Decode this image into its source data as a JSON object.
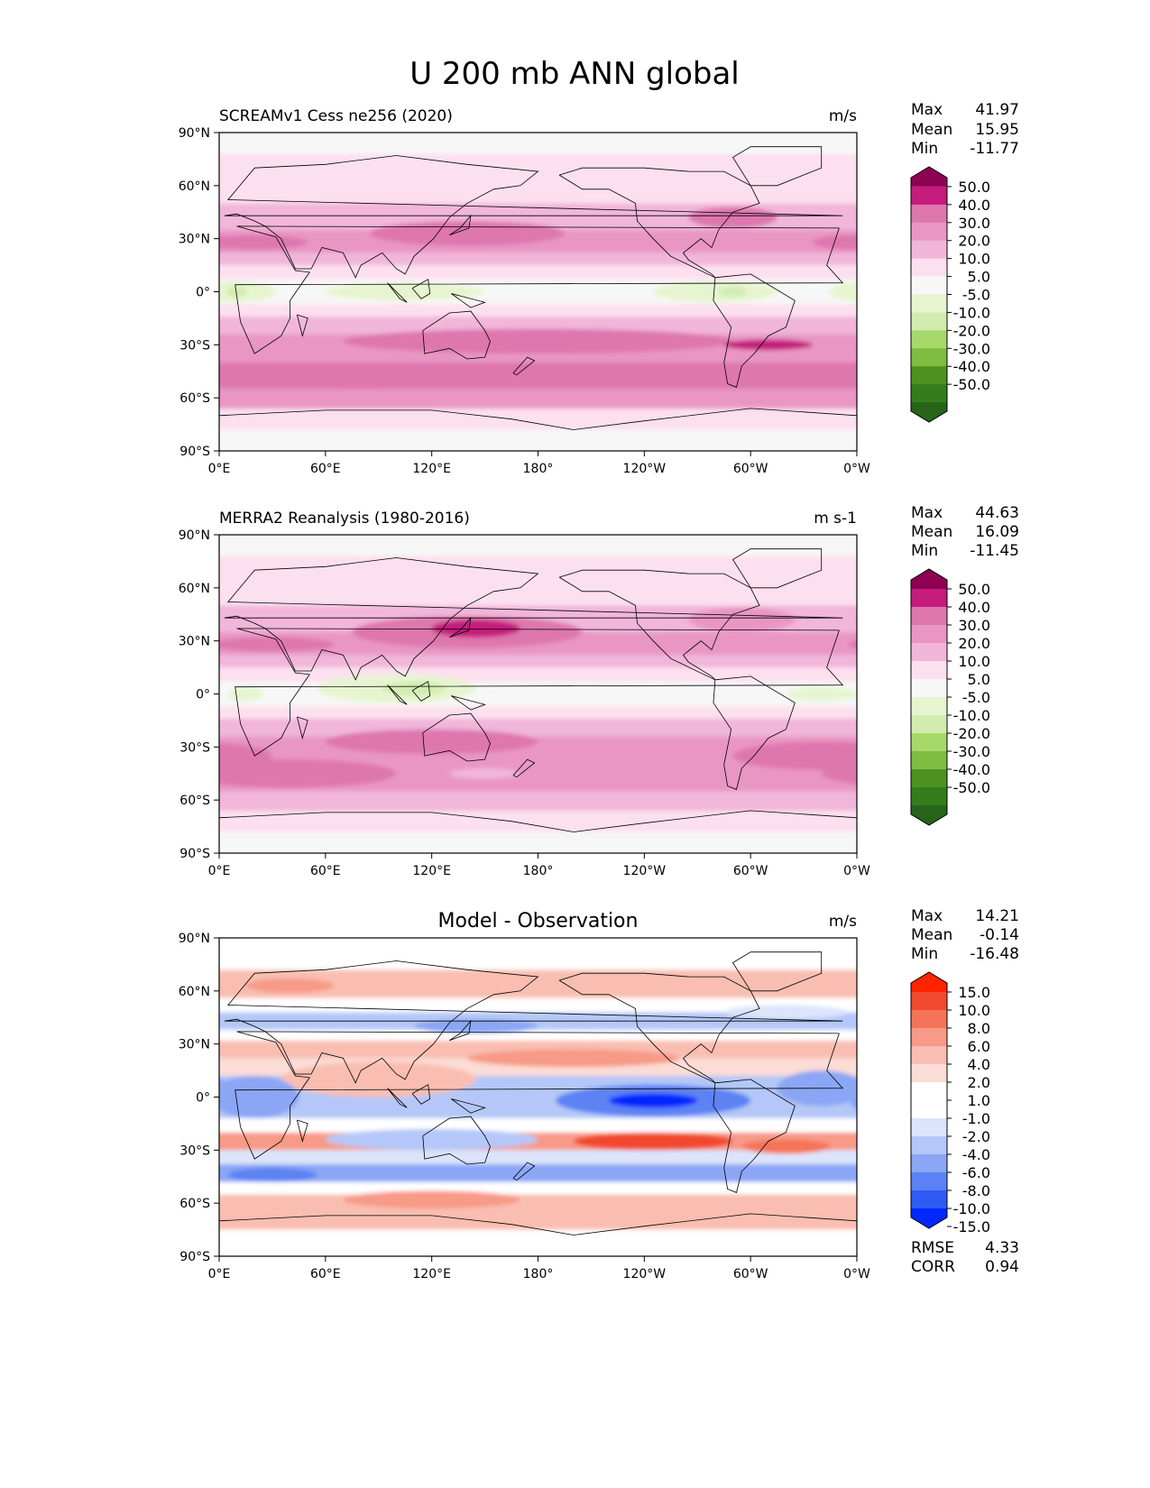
{
  "figure_title": "U 200 mb ANN global",
  "colors": {
    "land_outline": "#000000",
    "background_field": "#f7f7f7",
    "piyg": [
      "#276419",
      "#347d1d",
      "#4d9221",
      "#7fbc41",
      "#a6d96a",
      "#d2ecb0",
      "#e6f5d0",
      "#f7f7f7",
      "#fde0ef",
      "#f1b6da",
      "#e996c4",
      "#de77ae",
      "#c51b7d",
      "#8e0152"
    ],
    "bwr": [
      "#0028ff",
      "#2f5bf5",
      "#5b82f4",
      "#8aa6f5",
      "#b4c7f8",
      "#dbe4fb",
      "#ffffff",
      "#ffffff",
      "#fbdcd6",
      "#f9beb1",
      "#f79a87",
      "#f47459",
      "#f24a2f",
      "#ff2400"
    ]
  },
  "chart_data": [
    {
      "type": "heatmap",
      "title": "SCREAMv1 Cess ne256 (2020)",
      "units": "m/s",
      "stats": {
        "max": "41.97",
        "mean": "15.95",
        "min": "-11.77"
      },
      "stat_labels": {
        "max": "Max",
        "mean": "Mean",
        "min": "Min"
      },
      "x_ticks": [
        "0°E",
        "60°E",
        "120°E",
        "180°",
        "120°W",
        "60°W",
        "0°W"
      ],
      "y_ticks": [
        "90°N",
        "60°N",
        "30°N",
        "0°",
        "30°S",
        "60°S",
        "90°S"
      ],
      "xlim": [
        0,
        360
      ],
      "ylim": [
        -90,
        90
      ],
      "colorbar": {
        "palette": "piyg",
        "labels": [
          "50.0",
          "40.0",
          "30.0",
          "20.0",
          "10.0",
          "5.0",
          "-5.0",
          "-10.0",
          "-20.0",
          "-30.0",
          "-40.0",
          "-50.0"
        ]
      },
      "bands": [
        {
          "lat": [
            -90,
            -78
          ],
          "level": 7
        },
        {
          "lat": [
            -78,
            -66
          ],
          "level": 8
        },
        {
          "lat": [
            -66,
            -55
          ],
          "level": 10
        },
        {
          "lat": [
            -55,
            -40
          ],
          "level": 11
        },
        {
          "lat": [
            -40,
            -24
          ],
          "level": 10
        },
        {
          "lat": [
            -24,
            -14
          ],
          "level": 9
        },
        {
          "lat": [
            -14,
            -7
          ],
          "level": 8
        },
        {
          "lat": [
            -7,
            7
          ],
          "level": 7
        },
        {
          "lat": [
            7,
            15
          ],
          "level": 8
        },
        {
          "lat": [
            15,
            22
          ],
          "level": 9
        },
        {
          "lat": [
            22,
            35
          ],
          "level": 10
        },
        {
          "lat": [
            35,
            50
          ],
          "level": 9
        },
        {
          "lat": [
            50,
            78
          ],
          "level": 8
        },
        {
          "lat": [
            78,
            90
          ],
          "level": 7
        }
      ],
      "features": [
        {
          "lon": 8,
          "lat": 0,
          "rlon": 24,
          "rlat": 6,
          "level": 6
        },
        {
          "lon": 10,
          "lat": 0,
          "rlon": 6,
          "rlat": 3,
          "level": 5
        },
        {
          "lon": 105,
          "lat": 0,
          "rlon": 45,
          "rlat": 5,
          "level": 6
        },
        {
          "lon": 280,
          "lat": 0,
          "rlon": 35,
          "rlat": 6,
          "level": 6
        },
        {
          "lon": 290,
          "lat": 0,
          "rlon": 8,
          "rlat": 3,
          "level": 5
        },
        {
          "lon": 140,
          "lat": 33,
          "rlon": 55,
          "rlat": 7,
          "level": 11
        },
        {
          "lon": 20,
          "lat": 28,
          "rlon": 30,
          "rlat": 4,
          "level": 11
        },
        {
          "lon": 290,
          "lat": 42,
          "rlon": 25,
          "rlat": 6,
          "level": 11
        },
        {
          "lon": 355,
          "lat": 28,
          "rlon": 20,
          "rlat": 4,
          "level": 11
        },
        {
          "lon": 180,
          "lat": -28,
          "rlon": 110,
          "rlat": 7,
          "level": 11
        },
        {
          "lon": 310,
          "lat": -30,
          "rlon": 25,
          "rlat": 3,
          "level": 12
        },
        {
          "lon": 80,
          "lat": -48,
          "rlon": 70,
          "rlat": 7,
          "level": 11
        }
      ]
    },
    {
      "type": "heatmap",
      "title": "MERRA2 Reanalysis (1980-2016)",
      "units": "m s-1",
      "stats": {
        "max": "44.63",
        "mean": "16.09",
        "min": "-11.45"
      },
      "stat_labels": {
        "max": "Max",
        "mean": "Mean",
        "min": "Min"
      },
      "x_ticks": [
        "0°E",
        "60°E",
        "120°E",
        "180°",
        "120°W",
        "60°W",
        "0°W"
      ],
      "y_ticks": [
        "90°N",
        "60°N",
        "30°N",
        "0°",
        "30°S",
        "60°S",
        "90°S"
      ],
      "xlim": [
        0,
        360
      ],
      "ylim": [
        -90,
        90
      ],
      "colorbar": {
        "palette": "piyg",
        "labels": [
          "50.0",
          "40.0",
          "30.0",
          "20.0",
          "10.0",
          "5.0",
          "-5.0",
          "-10.0",
          "-20.0",
          "-30.0",
          "-40.0",
          "-50.0"
        ]
      },
      "bands": [
        {
          "lat": [
            -90,
            -78
          ],
          "level": 7
        },
        {
          "lat": [
            -78,
            -66
          ],
          "level": 8
        },
        {
          "lat": [
            -66,
            -55
          ],
          "level": 9
        },
        {
          "lat": [
            -55,
            -40
          ],
          "level": 10
        },
        {
          "lat": [
            -40,
            -24
          ],
          "level": 10
        },
        {
          "lat": [
            -24,
            -14
          ],
          "level": 9
        },
        {
          "lat": [
            -14,
            -7
          ],
          "level": 8
        },
        {
          "lat": [
            -7,
            7
          ],
          "level": 7
        },
        {
          "lat": [
            7,
            15
          ],
          "level": 8
        },
        {
          "lat": [
            15,
            22
          ],
          "level": 9
        },
        {
          "lat": [
            22,
            35
          ],
          "level": 10
        },
        {
          "lat": [
            35,
            50
          ],
          "level": 9
        },
        {
          "lat": [
            50,
            78
          ],
          "level": 8
        },
        {
          "lat": [
            78,
            90
          ],
          "level": 7
        }
      ],
      "features": [
        {
          "lon": 100,
          "lat": 3,
          "rlon": 45,
          "rlat": 8,
          "level": 6
        },
        {
          "lon": 110,
          "lat": 3,
          "rlon": 18,
          "rlat": 4,
          "level": 5
        },
        {
          "lon": 15,
          "lat": 0,
          "rlon": 10,
          "rlat": 4,
          "level": 6
        },
        {
          "lon": 340,
          "lat": 0,
          "rlon": 20,
          "rlat": 4,
          "level": 6
        },
        {
          "lon": 140,
          "lat": 35,
          "rlon": 65,
          "rlat": 9,
          "level": 11
        },
        {
          "lon": 145,
          "lat": 37,
          "rlon": 25,
          "rlat": 5,
          "level": 12
        },
        {
          "lon": 30,
          "lat": 28,
          "rlon": 35,
          "rlat": 4,
          "level": 11
        },
        {
          "lon": 295,
          "lat": 42,
          "rlon": 30,
          "rlat": 7,
          "level": 10
        },
        {
          "lon": 120,
          "lat": -27,
          "rlon": 60,
          "rlat": 7,
          "level": 11
        },
        {
          "lon": 340,
          "lat": -35,
          "rlon": 50,
          "rlat": 8,
          "level": 11
        },
        {
          "lon": 40,
          "lat": -45,
          "rlon": 60,
          "rlat": 8,
          "level": 11
        },
        {
          "lon": 150,
          "lat": -45,
          "rlon": 20,
          "rlat": 3,
          "level": 9
        }
      ]
    },
    {
      "type": "heatmap",
      "title": "Model - Observation",
      "units": "m/s",
      "stats": {
        "max": "14.21",
        "mean": "-0.14",
        "min": "-16.48"
      },
      "stat_labels": {
        "max": "Max",
        "mean": "Mean",
        "min": "Min"
      },
      "extra_stats": {
        "rmse_label": "RMSE",
        "rmse": "4.33",
        "corr_label": "CORR",
        "corr": "0.94"
      },
      "x_ticks": [
        "0°E",
        "60°E",
        "120°E",
        "180°",
        "120°W",
        "60°W",
        "0°W"
      ],
      "y_ticks": [
        "90°N",
        "60°N",
        "30°N",
        "0°",
        "30°S",
        "60°S",
        "90°S"
      ],
      "xlim": [
        0,
        360
      ],
      "ylim": [
        -90,
        90
      ],
      "colorbar": {
        "palette": "bwr",
        "labels": [
          "15.0",
          "10.0",
          "8.0",
          "6.0",
          "4.0",
          "2.0",
          "1.0",
          "-1.0",
          "-2.0",
          "-4.0",
          "-6.0",
          "-8.0",
          "-10.0",
          "-15.0"
        ]
      },
      "bands": [
        {
          "lat": [
            -90,
            -75
          ],
          "level": 7
        },
        {
          "lat": [
            -75,
            -55
          ],
          "level": 9
        },
        {
          "lat": [
            -55,
            -48
          ],
          "level": 7
        },
        {
          "lat": [
            -48,
            -38
          ],
          "level": 3
        },
        {
          "lat": [
            -38,
            -30
          ],
          "level": 5
        },
        {
          "lat": [
            -30,
            -20
          ],
          "level": 10
        },
        {
          "lat": [
            -20,
            -12
          ],
          "level": 7
        },
        {
          "lat": [
            -12,
            12
          ],
          "level": 4
        },
        {
          "lat": [
            12,
            22
          ],
          "level": 8
        },
        {
          "lat": [
            22,
            32
          ],
          "level": 9
        },
        {
          "lat": [
            32,
            38
          ],
          "level": 7
        },
        {
          "lat": [
            38,
            48
          ],
          "level": 4
        },
        {
          "lat": [
            48,
            56
          ],
          "level": 7
        },
        {
          "lat": [
            56,
            72
          ],
          "level": 9
        },
        {
          "lat": [
            72,
            90
          ],
          "level": 7
        }
      ],
      "features": [
        {
          "lon": 245,
          "lat": -2,
          "rlon": 55,
          "rlat": 9,
          "level": 2
        },
        {
          "lon": 245,
          "lat": -2,
          "rlon": 25,
          "rlat": 4,
          "level": 0
        },
        {
          "lon": 90,
          "lat": 10,
          "rlon": 55,
          "rlat": 10,
          "level": 9
        },
        {
          "lon": 245,
          "lat": -25,
          "rlon": 45,
          "rlat": 5,
          "level": 12
        },
        {
          "lon": 320,
          "lat": -28,
          "rlon": 25,
          "rlat": 4,
          "level": 11
        },
        {
          "lon": 120,
          "lat": -24,
          "rlon": 60,
          "rlat": 6,
          "level": 4
        },
        {
          "lon": 145,
          "lat": 40,
          "rlon": 35,
          "rlat": 4,
          "level": 3
        },
        {
          "lon": 30,
          "lat": -44,
          "rlon": 25,
          "rlat": 4,
          "level": 2
        },
        {
          "lon": 200,
          "lat": 22,
          "rlon": 60,
          "rlat": 5,
          "level": 10
        },
        {
          "lon": 20,
          "lat": 0,
          "rlon": 25,
          "rlat": 12,
          "level": 3
        },
        {
          "lon": 340,
          "lat": 5,
          "rlon": 25,
          "rlat": 10,
          "level": 3
        },
        {
          "lon": 320,
          "lat": 48,
          "rlon": 35,
          "rlat": 4,
          "level": 5
        },
        {
          "lon": 120,
          "lat": -58,
          "rlon": 50,
          "rlat": 5,
          "level": 10
        },
        {
          "lon": 40,
          "lat": 63,
          "rlon": 25,
          "rlat": 4,
          "level": 10
        }
      ]
    }
  ]
}
